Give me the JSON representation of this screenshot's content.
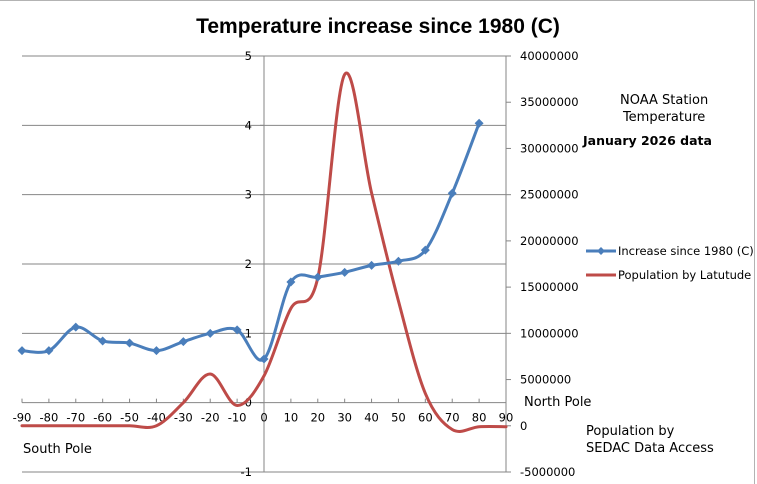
{
  "chart_data": {
    "type": "line",
    "title": "Temperature increase since 1980 (C)",
    "xlabel": "",
    "ylabel": "",
    "x": [
      -90,
      -80,
      -70,
      -60,
      -50,
      -40,
      -30,
      -20,
      -10,
      0,
      10,
      20,
      30,
      40,
      50,
      60,
      70,
      80,
      90
    ],
    "x_ticks": [
      "-90",
      "-80",
      "-70",
      "-60",
      "-50",
      "-40",
      "-30",
      "-20",
      "-10",
      "0",
      "10",
      "20",
      "30",
      "40",
      "50",
      "60",
      "70",
      "80",
      "90"
    ],
    "xlim": [
      -90,
      90
    ],
    "ylim_left": [
      -1,
      5
    ],
    "y_ticks_left": [
      "-1",
      "0",
      "1",
      "2",
      "3",
      "4",
      "5"
    ],
    "ylim_right": [
      -5000000,
      40000000
    ],
    "y_ticks_right": [
      "-5000000",
      "0",
      "5000000",
      "10000000",
      "15000000",
      "20000000",
      "25000000",
      "30000000",
      "35000000",
      "40000000"
    ],
    "grid": true,
    "legend_position": "right",
    "series": [
      {
        "name": "Increase since 1980 (C)",
        "axis": "left",
        "color": "#4a7ebb",
        "marker": "diamond",
        "x": [
          -90,
          -80,
          -70,
          -60,
          -50,
          -40,
          -30,
          -20,
          -10,
          0,
          10,
          20,
          30,
          40,
          50,
          60,
          70,
          80
        ],
        "values": [
          0.75,
          0.75,
          1.09,
          0.89,
          0.86,
          0.75,
          0.88,
          1.0,
          1.05,
          0.63,
          1.74,
          1.81,
          1.88,
          1.98,
          2.04,
          2.2,
          3.02,
          4.03
        ]
      },
      {
        "name": "Population by Latutude",
        "axis": "right",
        "color": "#be4b48",
        "marker": "none",
        "x": [
          -90,
          -80,
          -70,
          -60,
          -50,
          -40,
          -30,
          -20,
          -10,
          0,
          10,
          20,
          30,
          40,
          50,
          60,
          70,
          80,
          90
        ],
        "values": [
          0,
          0,
          0,
          0,
          0,
          0,
          2500000,
          5600000,
          2200000,
          5400000,
          12700000,
          16000000,
          38000000,
          25200000,
          13500000,
          3500000,
          -400000,
          -100000,
          -100000
        ]
      }
    ],
    "annotations": {
      "south_pole": "South Pole",
      "north_pole": "North Pole",
      "source_temp_line1": "NOAA Station",
      "source_temp_line2": "Temperature",
      "data_date": "January 2026 data",
      "source_pop_line1": "Population by",
      "source_pop_line2": "SEDAC Data Access"
    }
  }
}
